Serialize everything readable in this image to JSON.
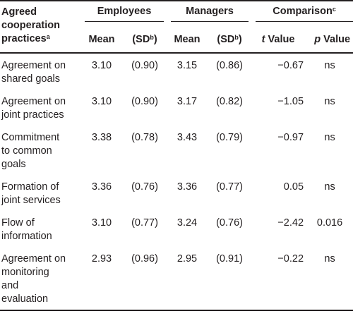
{
  "header": {
    "stub_line1": "Agreed",
    "stub_line2": "cooperation",
    "stub_line3": "practices",
    "stub_sup": "a",
    "group_employees": "Employees",
    "group_managers": "Managers",
    "group_comparison": "Comparison",
    "group_comparison_sup": "c",
    "mean_label": "Mean",
    "sd_label": "(SD",
    "sd_sup": "b",
    "sd_close": ")",
    "t_label_ital": "t",
    "t_label_rest": " Value",
    "p_label_ital": "p",
    "p_label_rest": " Value"
  },
  "rows": [
    {
      "label_lines": [
        "Agreement on",
        "shared goals"
      ],
      "emp_mean": "3.10",
      "emp_sd": "(0.90)",
      "mgr_mean": "3.15",
      "mgr_sd": "(0.86)",
      "t": "−0.67",
      "p": "ns"
    },
    {
      "label_lines": [
        "Agreement on",
        "joint practices"
      ],
      "emp_mean": "3.10",
      "emp_sd": "(0.90)",
      "mgr_mean": "3.17",
      "mgr_sd": "(0.82)",
      "t": "−1.05",
      "p": "ns"
    },
    {
      "label_lines": [
        "Commitment",
        "to common",
        "goals"
      ],
      "emp_mean": "3.38",
      "emp_sd": "(0.78)",
      "mgr_mean": "3.43",
      "mgr_sd": "(0.79)",
      "t": "−0.97",
      "p": "ns"
    },
    {
      "label_lines": [
        "Formation of",
        "joint services"
      ],
      "emp_mean": "3.36",
      "emp_sd": "(0.76)",
      "mgr_mean": "3.36",
      "mgr_sd": "(0.77)",
      "t": "0.05",
      "p": "ns"
    },
    {
      "label_lines": [
        "Flow of",
        "information"
      ],
      "emp_mean": "3.10",
      "emp_sd": "(0.77)",
      "mgr_mean": "3.24",
      "mgr_sd": "(0.76)",
      "t": "−2.42",
      "p": "0.016"
    },
    {
      "label_lines": [
        "Agreement on",
        "monitoring",
        "and",
        "evaluation"
      ],
      "emp_mean": "2.93",
      "emp_sd": "(0.96)",
      "mgr_mean": "2.95",
      "mgr_sd": "(0.91)",
      "t": "−0.22",
      "p": "ns"
    }
  ]
}
